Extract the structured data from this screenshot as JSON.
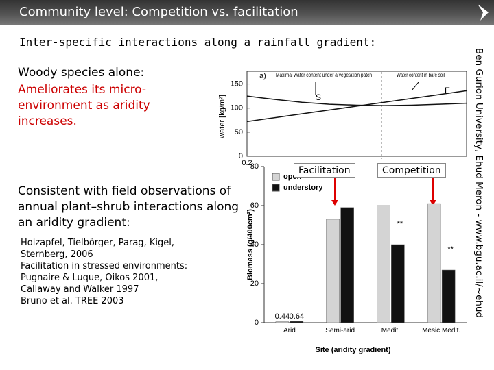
{
  "header": {
    "title": "Community level: Competition vs. facilitation",
    "side_text": "Ben Gurion University, Ehud Meron - www.bgu.ac.il/~ehud"
  },
  "subtitle": "Inter-specific interactions along a rainfall gradient:",
  "block1": {
    "heading": "Woody species alone:",
    "text": "Ameliorates its micro-environment as aridity increases."
  },
  "block2": {
    "heading": "Consistent with field observations of annual plant–shrub interactions along an aridity gradient:",
    "refs": [
      "Holzapfel, Tielbörger, Parag, Kigel, Sternberg, 2006",
      "Facilitation in stressed environments:",
      "Pugnaire & Luque, Oikos 2001,",
      "Callaway and Walker 1997",
      "Bruno et al. TREE 2003"
    ]
  },
  "labels": {
    "facilitation": "Facilitation",
    "competition": "Competition"
  },
  "chart_data": [
    {
      "type": "line",
      "y_label": "water [kg/m²]",
      "annotations": [
        "a)",
        "Maximal water content under a vegetation patch",
        "Water content in bare soil",
        "S",
        "E"
      ],
      "x": [
        0.2,
        0.3,
        0.4,
        0.5,
        0.6,
        0.7,
        0.8,
        0.9,
        1.0
      ],
      "series": [
        {
          "name": "S",
          "color": "#111111",
          "values": [
            125,
            118,
            112,
            108,
            106,
            105,
            106,
            108,
            110
          ]
        },
        {
          "name": "E",
          "color": "#111111",
          "values": [
            72,
            80,
            88,
            96,
            104,
            112,
            120,
            128,
            136
          ]
        }
      ],
      "xlim": [
        0.2,
        1.0
      ],
      "xticks": [
        0.2
      ],
      "ylim": [
        0,
        165
      ],
      "yticks": [
        0,
        50,
        100,
        150
      ]
    },
    {
      "type": "bar",
      "y_label": "Biomass (g/400cm²)",
      "x_label": "Site (aridity gradient)",
      "annotations": [
        "**",
        "**"
      ],
      "categories": [
        "Arid",
        "Semi-arid",
        "Medit.",
        "Mesic Medit."
      ],
      "series": [
        {
          "name": "open",
          "color": "#d4d4d4",
          "values": [
            0.44,
            53,
            60,
            61
          ]
        },
        {
          "name": "understory",
          "color": "#111111",
          "values": [
            0.64,
            59,
            40,
            27
          ]
        }
      ],
      "ylim": [
        0,
        80
      ],
      "yticks": [
        0,
        20,
        40,
        60,
        80
      ]
    }
  ]
}
